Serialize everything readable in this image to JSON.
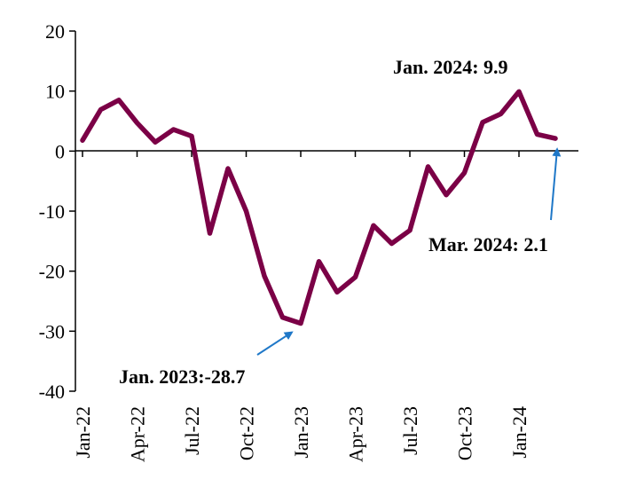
{
  "chart_data": {
    "type": "line",
    "title": "",
    "xlabel": "",
    "ylabel": "",
    "ylim": [
      -40,
      20
    ],
    "yticks": [
      20,
      10,
      0,
      -10,
      -20,
      -30,
      -40
    ],
    "ytick_labels": [
      "20",
      "10",
      "0",
      "-10",
      "-20",
      "-30",
      "-40"
    ],
    "xtick_labels": [
      "Jan-22",
      "Apr-22",
      "Jul-22",
      "Oct-22",
      "Jan-23",
      "Apr-23",
      "Jul-23",
      "Oct-23",
      "Jan-24"
    ],
    "xtick_indices": [
      0,
      3,
      6,
      9,
      12,
      15,
      18,
      21,
      24
    ],
    "x": [
      "Jan-22",
      "Feb-22",
      "Mar-22",
      "Apr-22",
      "May-22",
      "Jun-22",
      "Jul-22",
      "Aug-22",
      "Sep-22",
      "Oct-22",
      "Nov-22",
      "Dec-22",
      "Jan-23",
      "Feb-23",
      "Mar-23",
      "Apr-23",
      "May-23",
      "Jun-23",
      "Jul-23",
      "Aug-23",
      "Sep-23",
      "Oct-23",
      "Nov-23",
      "Dec-23",
      "Jan-24",
      "Feb-24",
      "Mar-24"
    ],
    "series": [
      {
        "values": [
          1.8,
          6.9,
          8.5,
          4.7,
          1.5,
          3.6,
          2.5,
          -13.7,
          -2.9,
          -10.0,
          -20.8,
          -27.7,
          -28.7,
          -18.4,
          -23.5,
          -21.0,
          -12.4,
          -15.4,
          -13.2,
          -2.6,
          -7.3,
          -3.6,
          4.8,
          6.2,
          9.9,
          2.8,
          2.1
        ],
        "color": "#7B0046"
      }
    ],
    "grid": false,
    "legend": "none",
    "annotations": [
      {
        "text": "Jan. 2024: 9.9",
        "target_index": 24,
        "arrow": false
      },
      {
        "text": "Mar. 2024: 2.1",
        "target_index": 26,
        "arrow": true,
        "arrow_color": "#1F78C8"
      },
      {
        "text": "Jan. 2023:-28.7",
        "target_index": 12,
        "arrow": true,
        "arrow_color": "#1F78C8"
      }
    ]
  }
}
